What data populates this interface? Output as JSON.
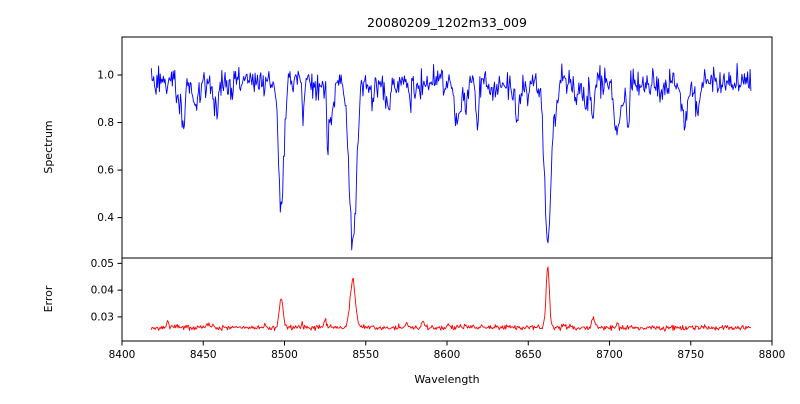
{
  "chart_data": {
    "type": "line",
    "title": "20080209_1202m33_009",
    "xlabel": "Wavelength",
    "xlim": [
      8400,
      8800
    ],
    "xticks": [
      "8400",
      "8450",
      "8500",
      "8550",
      "8600",
      "8650",
      "8700",
      "8750",
      "8800"
    ],
    "x_data_range": [
      8418,
      8787
    ],
    "grid": false,
    "legend": "none",
    "panels": [
      {
        "name": "spectrum",
        "ylabel": "Spectrum",
        "line_color": "#0000ff",
        "ylim": [
          0.23,
          1.16
        ],
        "yticks": [
          "0.4",
          "0.6",
          "0.8",
          "1.0"
        ],
        "continuum_level": 0.97,
        "noise_sigma": 0.028,
        "absorption_lines": [
          {
            "center": 8498,
            "depth": 0.53,
            "sigma": 1.6
          },
          {
            "center": 8542,
            "depth": 0.68,
            "sigma": 2.2
          },
          {
            "center": 8662,
            "depth": 0.65,
            "sigma": 2.0
          }
        ]
      },
      {
        "name": "error",
        "ylabel": "Error",
        "line_color": "#ff0000",
        "ylim": [
          0.021,
          0.052
        ],
        "yticks": [
          "0.03",
          "0.04",
          "0.05"
        ],
        "baseline_level": 0.026,
        "noise_sigma": 0.0005,
        "peaks": [
          {
            "center": 8498,
            "height": 0.011,
            "sigma": 1.2
          },
          {
            "center": 8542,
            "height": 0.018,
            "sigma": 1.6
          },
          {
            "center": 8662,
            "height": 0.0235,
            "sigma": 1.0
          },
          {
            "center": 8690,
            "height": 0.004,
            "sigma": 0.8
          }
        ]
      }
    ]
  }
}
